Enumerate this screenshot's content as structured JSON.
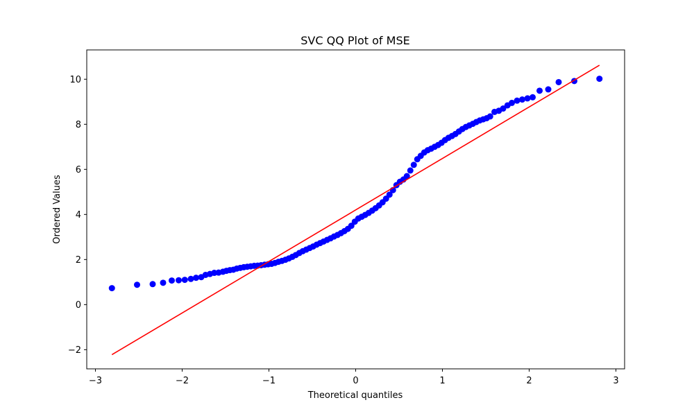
{
  "chart_data": {
    "type": "scatter",
    "title": "SVC QQ Plot of MSE",
    "xlabel": "Theoretical quantiles",
    "ylabel": "Ordered Values",
    "xlim": [
      -3.1,
      3.1
    ],
    "ylim": [
      -2.85,
      11.3
    ],
    "xticks": [
      -3,
      -2,
      -1,
      0,
      1,
      2,
      3
    ],
    "xtick_labels": [
      "−3",
      "−2",
      "−1",
      "0",
      "1",
      "2",
      "3"
    ],
    "yticks": [
      -2,
      0,
      2,
      4,
      6,
      8,
      10
    ],
    "ytick_labels": [
      "−2",
      "0",
      "2",
      "4",
      "6",
      "8",
      "10"
    ],
    "grid": false,
    "legend": "none",
    "point_color": "#0000ff",
    "line_color": "#ff0000",
    "series": [
      {
        "type": "scatter",
        "points": [
          [
            -2.81,
            0.73
          ],
          [
            -2.52,
            0.88
          ],
          [
            -2.34,
            0.91
          ],
          [
            -2.22,
            0.97
          ],
          [
            -2.12,
            1.07
          ],
          [
            -2.04,
            1.08
          ],
          [
            -1.97,
            1.1
          ],
          [
            -1.9,
            1.14
          ],
          [
            -1.84,
            1.19
          ],
          [
            -1.78,
            1.22
          ],
          [
            -1.73,
            1.32
          ],
          [
            -1.68,
            1.36
          ],
          [
            -1.63,
            1.41
          ],
          [
            -1.58,
            1.42
          ],
          [
            -1.53,
            1.46
          ],
          [
            -1.49,
            1.5
          ],
          [
            -1.45,
            1.53
          ],
          [
            -1.41,
            1.55
          ],
          [
            -1.37,
            1.6
          ],
          [
            -1.33,
            1.63
          ],
          [
            -1.29,
            1.66
          ],
          [
            -1.25,
            1.68
          ],
          [
            -1.21,
            1.7
          ],
          [
            -1.17,
            1.72
          ],
          [
            -1.13,
            1.73
          ],
          [
            -1.09,
            1.75
          ],
          [
            -1.05,
            1.77
          ],
          [
            -1.01,
            1.79
          ],
          [
            -0.97,
            1.81
          ],
          [
            -0.93,
            1.85
          ],
          [
            -0.89,
            1.9
          ],
          [
            -0.85,
            1.94
          ],
          [
            -0.81,
            1.99
          ],
          [
            -0.77,
            2.05
          ],
          [
            -0.73,
            2.12
          ],
          [
            -0.69,
            2.2
          ],
          [
            -0.65,
            2.29
          ],
          [
            -0.61,
            2.37
          ],
          [
            -0.57,
            2.44
          ],
          [
            -0.53,
            2.51
          ],
          [
            -0.49,
            2.58
          ],
          [
            -0.45,
            2.66
          ],
          [
            -0.41,
            2.73
          ],
          [
            -0.37,
            2.8
          ],
          [
            -0.33,
            2.87
          ],
          [
            -0.29,
            2.94
          ],
          [
            -0.25,
            3.02
          ],
          [
            -0.21,
            3.09
          ],
          [
            -0.17,
            3.17
          ],
          [
            -0.13,
            3.26
          ],
          [
            -0.09,
            3.36
          ],
          [
            -0.05,
            3.5
          ],
          [
            -0.01,
            3.68
          ],
          [
            0.03,
            3.82
          ],
          [
            0.07,
            3.9
          ],
          [
            0.11,
            3.98
          ],
          [
            0.15,
            4.07
          ],
          [
            0.19,
            4.17
          ],
          [
            0.23,
            4.28
          ],
          [
            0.27,
            4.4
          ],
          [
            0.31,
            4.54
          ],
          [
            0.35,
            4.7
          ],
          [
            0.39,
            4.88
          ],
          [
            0.43,
            5.08
          ],
          [
            0.47,
            5.3
          ],
          [
            0.51,
            5.45
          ],
          [
            0.55,
            5.55
          ],
          [
            0.59,
            5.7
          ],
          [
            0.63,
            5.95
          ],
          [
            0.67,
            6.2
          ],
          [
            0.71,
            6.45
          ],
          [
            0.75,
            6.6
          ],
          [
            0.79,
            6.75
          ],
          [
            0.83,
            6.85
          ],
          [
            0.87,
            6.92
          ],
          [
            0.91,
            7.0
          ],
          [
            0.95,
            7.08
          ],
          [
            0.99,
            7.18
          ],
          [
            1.03,
            7.3
          ],
          [
            1.07,
            7.4
          ],
          [
            1.11,
            7.48
          ],
          [
            1.15,
            7.57
          ],
          [
            1.19,
            7.68
          ],
          [
            1.23,
            7.79
          ],
          [
            1.27,
            7.88
          ],
          [
            1.31,
            7.95
          ],
          [
            1.35,
            8.02
          ],
          [
            1.39,
            8.1
          ],
          [
            1.43,
            8.17
          ],
          [
            1.47,
            8.22
          ],
          [
            1.51,
            8.27
          ],
          [
            1.55,
            8.35
          ],
          [
            1.6,
            8.55
          ],
          [
            1.65,
            8.6
          ],
          [
            1.7,
            8.7
          ],
          [
            1.75,
            8.84
          ],
          [
            1.8,
            8.95
          ],
          [
            1.86,
            9.05
          ],
          [
            1.92,
            9.1
          ],
          [
            1.98,
            9.15
          ],
          [
            2.04,
            9.2
          ],
          [
            2.12,
            9.49
          ],
          [
            2.22,
            9.55
          ],
          [
            2.34,
            9.87
          ],
          [
            2.52,
            9.92
          ],
          [
            2.81,
            10.02
          ]
        ]
      },
      {
        "type": "line",
        "points": [
          [
            -2.81,
            -2.22
          ],
          [
            2.81,
            10.62
          ]
        ]
      }
    ]
  }
}
